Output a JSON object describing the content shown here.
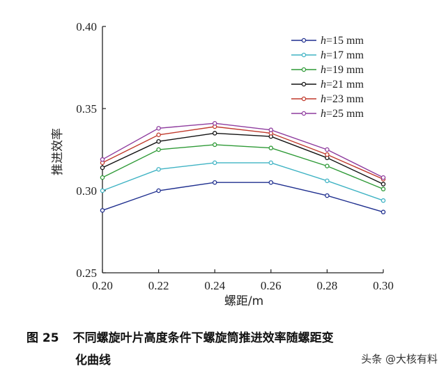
{
  "chart_data": {
    "type": "line",
    "x": [
      0.2,
      0.22,
      0.24,
      0.26,
      0.28,
      0.3
    ],
    "xlim": [
      0.2,
      0.3
    ],
    "ylim": [
      0.25,
      0.4
    ],
    "x_ticks": [
      "0.20",
      "0.22",
      "0.24",
      "0.26",
      "0.28",
      "0.30"
    ],
    "y_ticks": [
      "0.25",
      "0.30",
      "0.35",
      "0.40"
    ],
    "xlabel": "螺距/m",
    "ylabel": "推进效率",
    "grid": false,
    "legend_position": "top-right",
    "series": [
      {
        "name": "h=15 mm",
        "color": "#1f2f8f",
        "values": [
          0.288,
          0.3,
          0.305,
          0.305,
          0.297,
          0.287
        ]
      },
      {
        "name": "h=17 mm",
        "color": "#3fb3c4",
        "values": [
          0.3,
          0.313,
          0.317,
          0.317,
          0.306,
          0.294
        ]
      },
      {
        "name": "h=19 mm",
        "color": "#2e9a36",
        "values": [
          0.308,
          0.325,
          0.328,
          0.326,
          0.315,
          0.301
        ]
      },
      {
        "name": "h=21 mm",
        "color": "#111111",
        "values": [
          0.314,
          0.33,
          0.335,
          0.333,
          0.32,
          0.304
        ]
      },
      {
        "name": "h=23 mm",
        "color": "#c0392b",
        "values": [
          0.317,
          0.334,
          0.339,
          0.335,
          0.322,
          0.307
        ]
      },
      {
        "name": "h=25 mm",
        "color": "#8e3b9e",
        "values": [
          0.319,
          0.338,
          0.341,
          0.337,
          0.325,
          0.308
        ]
      }
    ]
  },
  "caption": {
    "figure_number": "图 25",
    "text_line1": "不同螺旋叶片高度条件下螺旋筒推进效率随螺距变",
    "text_line2": "化曲线"
  },
  "watermark": "头条 @大核有料"
}
